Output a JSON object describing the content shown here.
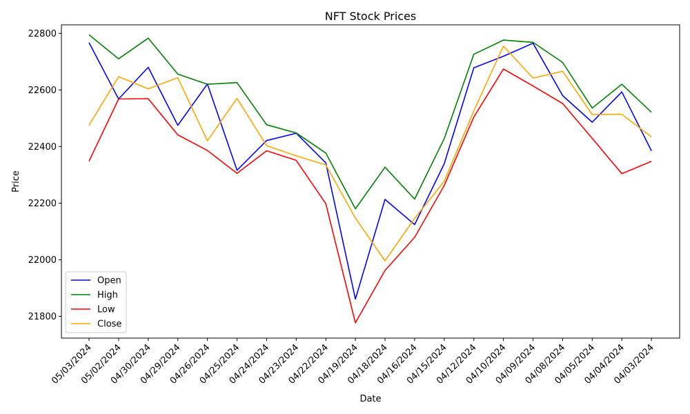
{
  "chart_data": {
    "type": "line",
    "title": "NFT Stock Prices",
    "xlabel": "Date",
    "ylabel": "Price",
    "categories": [
      "05/03/2024",
      "05/02/2024",
      "04/30/2024",
      "04/29/2024",
      "04/26/2024",
      "04/25/2024",
      "04/24/2024",
      "04/23/2024",
      "04/22/2024",
      "04/19/2024",
      "04/18/2024",
      "04/16/2024",
      "04/15/2024",
      "04/12/2024",
      "04/10/2024",
      "04/09/2024",
      "04/08/2024",
      "04/05/2024",
      "04/04/2024",
      "04/03/2024"
    ],
    "ylim": [
      21723,
      22830
    ],
    "yticks": [
      21800,
      22000,
      22200,
      22400,
      22600,
      22800
    ],
    "grid": false,
    "legend_position": "lower left",
    "series": [
      {
        "name": "Open",
        "color": "#0000ff",
        "values": [
          22767,
          22568,
          22680,
          22475,
          22621,
          22316,
          22421,
          22447,
          22342,
          21861,
          22213,
          22124,
          22339,
          22678,
          22719,
          22765,
          22580,
          22486,
          22593,
          22385
        ]
      },
      {
        "name": "High",
        "color": "#008000",
        "values": [
          22795,
          22710,
          22783,
          22656,
          22620,
          22626,
          22477,
          22448,
          22377,
          22180,
          22327,
          22214,
          22428,
          22726,
          22776,
          22768,
          22697,
          22536,
          22620,
          22521
        ]
      },
      {
        "name": "Low",
        "color": "#ff0000",
        "values": [
          22348,
          22568,
          22569,
          22441,
          22386,
          22305,
          22385,
          22351,
          22198,
          21777,
          21962,
          22079,
          22262,
          22504,
          22674,
          22614,
          22552,
          22429,
          22304,
          22348
        ]
      },
      {
        "name": "Close",
        "color": "#ffa500",
        "values": [
          22475,
          22647,
          22604,
          22643,
          22420,
          22570,
          22403,
          22367,
          22335,
          22147,
          21996,
          22146,
          22277,
          22526,
          22755,
          22642,
          22666,
          22513,
          22514,
          22434
        ]
      }
    ]
  }
}
